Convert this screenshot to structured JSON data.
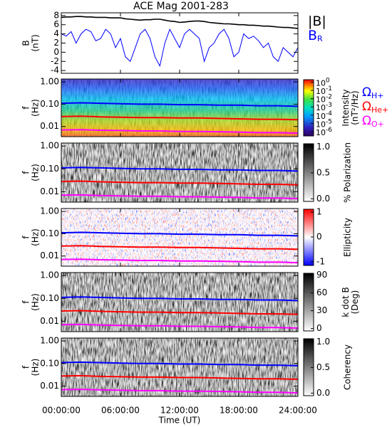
{
  "chart_data": [
    {
      "type": "line",
      "title": "ACE Mag 2001-283",
      "ylabel": [
        "B",
        "(nT)"
      ],
      "xlim": [
        0,
        24
      ],
      "ylim": [
        -4.6,
        8.6
      ],
      "yticks": [
        -4,
        -2,
        0,
        2,
        4,
        6,
        8
      ],
      "x": [
        0,
        0.5,
        1,
        1.5,
        2,
        2.5,
        3,
        3.5,
        4,
        4.5,
        5,
        5.5,
        6,
        6.5,
        7,
        7.5,
        8,
        8.5,
        9,
        9.5,
        10,
        10.5,
        11,
        11.5,
        12,
        12.5,
        13,
        13.5,
        14,
        14.5,
        15,
        15.5,
        16,
        16.5,
        17,
        17.5,
        18,
        18.5,
        19,
        19.5,
        20,
        20.5,
        21,
        21.5,
        22,
        22.5,
        23,
        23.5,
        24
      ],
      "series": [
        {
          "name": "|B|",
          "color": "#000000",
          "values": [
            7.6,
            7.7,
            7.7,
            7.8,
            7.8,
            7.7,
            7.7,
            7.6,
            7.6,
            7.6,
            7.5,
            7.5,
            7.5,
            7.3,
            7.2,
            7.1,
            7.0,
            7.1,
            7.1,
            7.2,
            7.2,
            7.0,
            6.8,
            6.7,
            6.5,
            6.6,
            6.7,
            6.8,
            6.8,
            6.7,
            6.5,
            6.4,
            6.3,
            6.2,
            6.2,
            6.1,
            6.0,
            6.0,
            5.9,
            5.9,
            5.8,
            5.7,
            5.7,
            5.6,
            5.5,
            5.4,
            5.4,
            5.3,
            5.2
          ]
        },
        {
          "name": "B",
          "subscript": "R",
          "color": "#0000ff",
          "values": [
            4.0,
            3.5,
            4.5,
            2,
            4,
            5,
            4.5,
            2.5,
            3,
            5,
            4,
            1,
            3,
            -1,
            -2,
            1,
            4,
            5,
            3,
            -1,
            -3,
            2,
            5,
            3,
            1,
            4,
            5,
            4,
            3,
            -2,
            1,
            2,
            4,
            5,
            3,
            -1,
            0,
            4,
            3,
            3.5,
            2.5,
            1,
            2,
            -1,
            -2,
            1,
            0,
            -1,
            1
          ]
        }
      ]
    },
    {
      "type": "spectrogram",
      "background": "rainbow",
      "ylog": true,
      "ylabel": [
        "f",
        "(Hz)"
      ],
      "xlim": [
        0,
        24
      ],
      "ylim": [
        0.0035,
        1.35
      ],
      "yticks": [
        {
          "value": 0.01,
          "label": "0.01"
        },
        {
          "value": 0.1,
          "label": "0.10"
        },
        {
          "value": 1,
          "label": "1.00"
        }
      ],
      "x": [
        0,
        2,
        4,
        6,
        8,
        10,
        12,
        14,
        16,
        18,
        20,
        22,
        24
      ],
      "series": [
        {
          "name": "Ω",
          "subscript": "H+",
          "color": "#0000ff",
          "values": [
            0.11,
            0.115,
            0.11,
            0.105,
            0.1,
            0.1,
            0.095,
            0.095,
            0.09,
            0.09,
            0.085,
            0.085,
            0.08
          ]
        },
        {
          "name": "Ω",
          "subscript": "He+",
          "color": "#ff0000",
          "values": [
            0.028,
            0.029,
            0.027,
            0.026,
            0.025,
            0.025,
            0.024,
            0.024,
            0.023,
            0.022,
            0.021,
            0.021,
            0.02
          ]
        },
        {
          "name": "Ω",
          "subscript": "O+",
          "color": "#ff00ff",
          "values": [
            0.007,
            0.0072,
            0.0068,
            0.0066,
            0.0063,
            0.0063,
            0.006,
            0.006,
            0.0058,
            0.0056,
            0.0053,
            0.0053,
            0.005
          ]
        }
      ],
      "colorbar": {
        "colormap": "rainbow",
        "log": true,
        "lim": [
          3e-07,
          2
        ],
        "label": [
          "Intensity",
          "(nT²/Hz)"
        ],
        "ticks": [
          {
            "value": 1e-06,
            "label": "10",
            "sup": "-6"
          },
          {
            "value": 1e-05,
            "label": "10",
            "sup": "-5"
          },
          {
            "value": 0.0001,
            "label": "10",
            "sup": "-4"
          },
          {
            "value": 0.001,
            "label": "10",
            "sup": "-3"
          },
          {
            "value": 0.01,
            "label": "10",
            "sup": "-2"
          },
          {
            "value": 0.1,
            "label": "10",
            "sup": "-1"
          },
          {
            "value": 1,
            "label": "10",
            "sup": "0"
          }
        ]
      }
    },
    {
      "type": "spectrogram",
      "background": "gray",
      "ylog": true,
      "ylabel": [
        "f",
        "(Hz)"
      ],
      "xlim": [
        0,
        24
      ],
      "ylim": [
        0.0035,
        1.35
      ],
      "yticks": [
        {
          "value": 0.01,
          "label": "0.01"
        },
        {
          "value": 0.1,
          "label": "0.10"
        },
        {
          "value": 1,
          "label": "1.00"
        }
      ],
      "x": [
        0,
        2,
        4,
        6,
        8,
        10,
        12,
        14,
        16,
        18,
        20,
        22,
        24
      ],
      "series": [
        {
          "color": "#0000ff",
          "values": [
            0.11,
            0.115,
            0.11,
            0.105,
            0.1,
            0.1,
            0.095,
            0.095,
            0.09,
            0.09,
            0.085,
            0.085,
            0.08
          ]
        },
        {
          "color": "#ff0000",
          "values": [
            0.028,
            0.029,
            0.027,
            0.026,
            0.025,
            0.025,
            0.024,
            0.024,
            0.023,
            0.022,
            0.021,
            0.021,
            0.02
          ]
        },
        {
          "color": "#ff00ff",
          "values": [
            0.007,
            0.0072,
            0.0068,
            0.0066,
            0.0063,
            0.0063,
            0.006,
            0.006,
            0.0058,
            0.0056,
            0.0053,
            0.0053,
            0.005
          ]
        }
      ],
      "colorbar": {
        "colormap": "gray",
        "lim": [
          -0.05,
          1.06
        ],
        "label": [
          "% Polarization"
        ],
        "ticks": [
          {
            "value": 0,
            "label": "0.0"
          },
          {
            "value": 0.5,
            "label": "0.5"
          },
          {
            "value": 1,
            "label": "1.0"
          }
        ]
      }
    },
    {
      "type": "spectrogram",
      "background": "bwr",
      "ylog": true,
      "ylabel": [
        "f",
        "(Hz)"
      ],
      "xlim": [
        0,
        24
      ],
      "ylim": [
        0.0035,
        1.35
      ],
      "yticks": [
        {
          "value": 0.01,
          "label": "0.01"
        },
        {
          "value": 0.1,
          "label": "0.10"
        },
        {
          "value": 1,
          "label": "1.00"
        }
      ],
      "x": [
        0,
        2,
        4,
        6,
        8,
        10,
        12,
        14,
        16,
        18,
        20,
        22,
        24
      ],
      "series": [
        {
          "color": "#0000ff",
          "values": [
            0.11,
            0.115,
            0.11,
            0.105,
            0.1,
            0.1,
            0.095,
            0.095,
            0.09,
            0.09,
            0.085,
            0.085,
            0.08
          ]
        },
        {
          "color": "#ff0000",
          "values": [
            0.028,
            0.029,
            0.027,
            0.026,
            0.025,
            0.025,
            0.024,
            0.024,
            0.023,
            0.022,
            0.021,
            0.021,
            0.02
          ]
        },
        {
          "color": "#ff00ff",
          "values": [
            0.007,
            0.0072,
            0.0068,
            0.0066,
            0.0063,
            0.0063,
            0.006,
            0.006,
            0.0058,
            0.0056,
            0.0053,
            0.0053,
            0.005
          ]
        }
      ],
      "colorbar": {
        "colormap": "bwr",
        "lim": [
          -1.15,
          1.12
        ],
        "label": [
          "Ellipticity"
        ],
        "ticks": [
          -1,
          0,
          1
        ]
      }
    },
    {
      "type": "spectrogram",
      "background": "gray",
      "ylog": true,
      "ylabel": [
        "f",
        "(Hz)"
      ],
      "xlim": [
        0,
        24
      ],
      "ylim": [
        0.0035,
        1.35
      ],
      "yticks": [
        {
          "value": 0.01,
          "label": "0.01"
        },
        {
          "value": 0.1,
          "label": "0.10"
        },
        {
          "value": 1,
          "label": "1.00"
        }
      ],
      "x": [
        0,
        2,
        4,
        6,
        8,
        10,
        12,
        14,
        16,
        18,
        20,
        22,
        24
      ],
      "series": [
        {
          "color": "#0000ff",
          "values": [
            0.11,
            0.115,
            0.11,
            0.105,
            0.1,
            0.1,
            0.095,
            0.095,
            0.09,
            0.09,
            0.085,
            0.085,
            0.08
          ]
        },
        {
          "color": "#ff0000",
          "values": [
            0.028,
            0.029,
            0.027,
            0.026,
            0.025,
            0.025,
            0.024,
            0.024,
            0.023,
            0.022,
            0.021,
            0.021,
            0.02
          ]
        },
        {
          "color": "#ff00ff",
          "values": [
            0.007,
            0.0072,
            0.0068,
            0.0066,
            0.0063,
            0.0063,
            0.006,
            0.006,
            0.0058,
            0.0056,
            0.0053,
            0.0053,
            0.005
          ]
        }
      ],
      "colorbar": {
        "colormap": "gray",
        "lim": [
          -4,
          93
        ],
        "label": [
          "k dot B",
          "(Deg)"
        ],
        "ticks": [
          0,
          30,
          60,
          90
        ]
      }
    },
    {
      "type": "spectrogram",
      "background": "gray",
      "ylog": true,
      "ylabel": [
        "f",
        "(Hz)"
      ],
      "xlim": [
        0,
        24
      ],
      "ylim": [
        0.0035,
        1.35
      ],
      "yticks": [
        {
          "value": 0.01,
          "label": "0.01"
        },
        {
          "value": 0.1,
          "label": "0.10"
        },
        {
          "value": 1,
          "label": "1.00"
        }
      ],
      "x": [
        0,
        2,
        4,
        6,
        8,
        10,
        12,
        14,
        16,
        18,
        20,
        22,
        24
      ],
      "series": [
        {
          "color": "#0000ff",
          "values": [
            0.11,
            0.115,
            0.11,
            0.105,
            0.1,
            0.1,
            0.095,
            0.095,
            0.09,
            0.09,
            0.085,
            0.085,
            0.08
          ]
        },
        {
          "color": "#ff0000",
          "values": [
            0.028,
            0.029,
            0.027,
            0.026,
            0.025,
            0.025,
            0.024,
            0.024,
            0.023,
            0.022,
            0.021,
            0.021,
            0.02
          ]
        },
        {
          "color": "#ff00ff",
          "values": [
            0.007,
            0.0072,
            0.0068,
            0.0066,
            0.0063,
            0.0063,
            0.006,
            0.006,
            0.0058,
            0.0056,
            0.0053,
            0.0053,
            0.005
          ]
        }
      ],
      "colorbar": {
        "colormap": "gray",
        "lim": [
          -0.05,
          1.06
        ],
        "label": [
          "Coherency"
        ],
        "ticks": [
          {
            "value": 0,
            "label": "0.0"
          },
          {
            "value": 0.5,
            "label": "0.5"
          },
          {
            "value": 1,
            "label": "1.0"
          }
        ]
      },
      "xlabel": "Time (UT)",
      "xticks": [
        {
          "value": 0,
          "label": "00:00:00"
        },
        {
          "value": 6,
          "label": "06:00:00"
        },
        {
          "value": 12,
          "label": "12:00:00"
        },
        {
          "value": 18,
          "label": "18:00:00"
        },
        {
          "value": 24,
          "label": "24:00:00"
        }
      ]
    }
  ]
}
